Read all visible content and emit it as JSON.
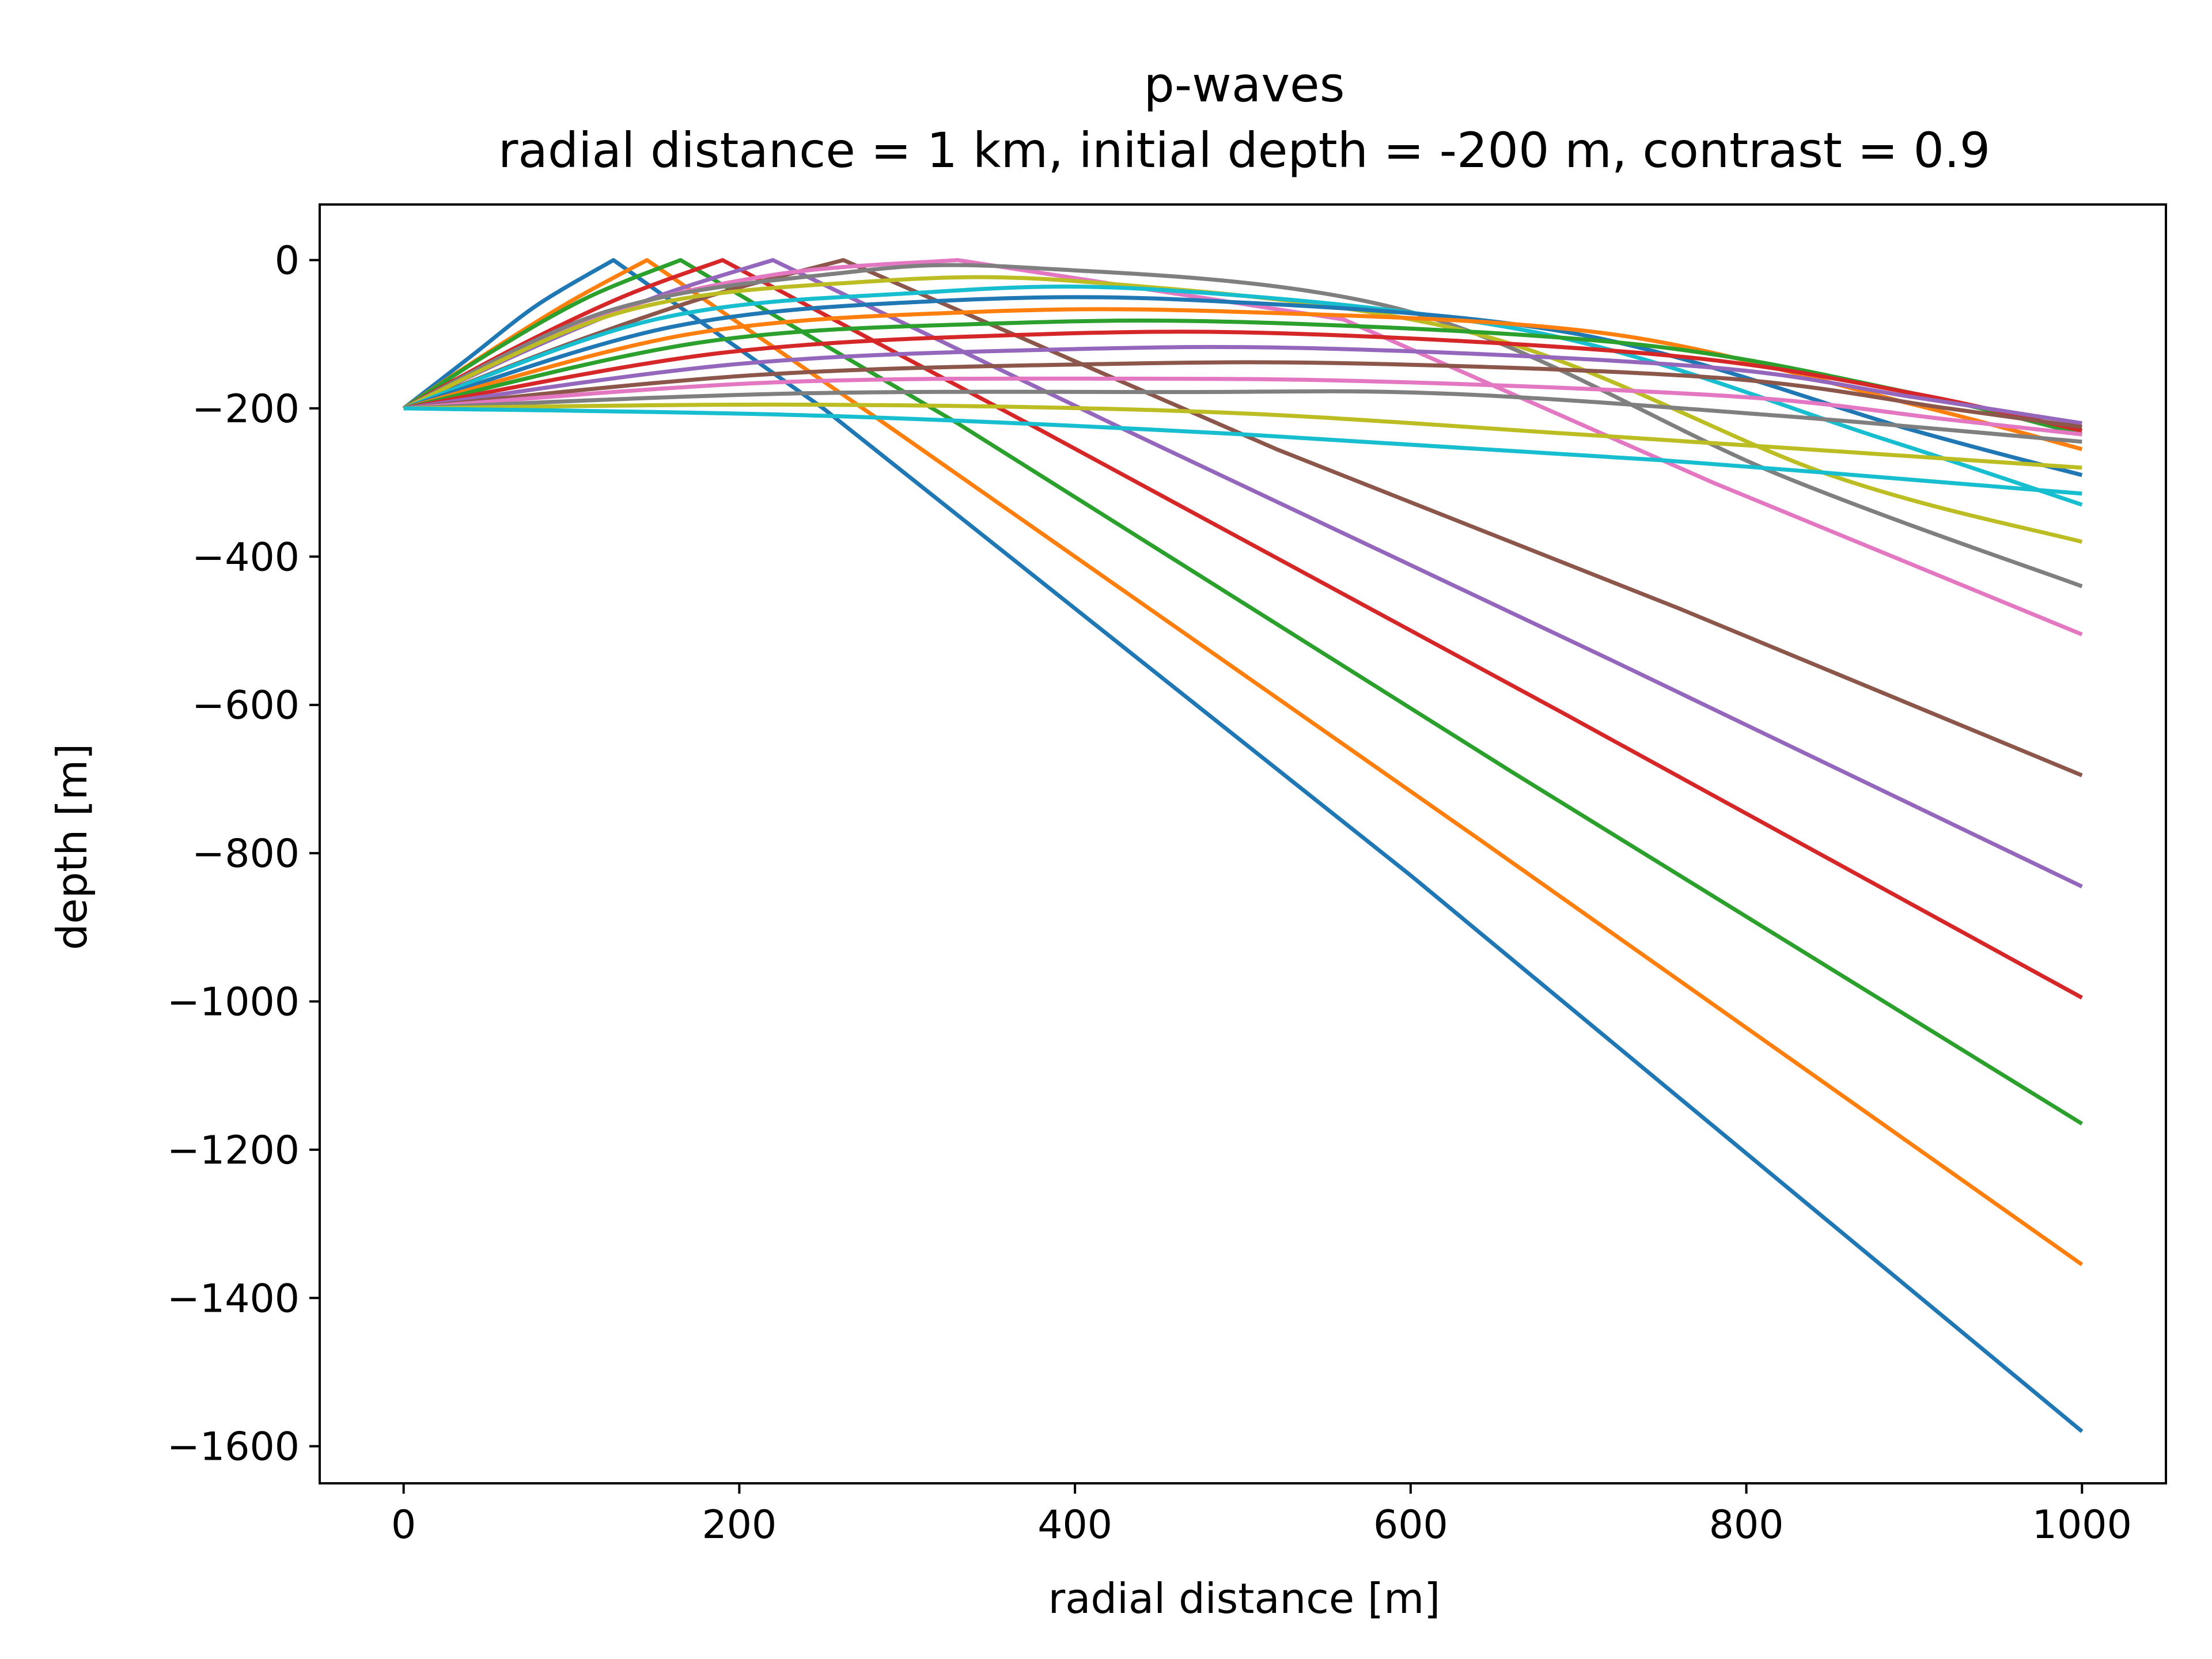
{
  "chart_data": {
    "type": "line",
    "title": "p-waves",
    "subtitle": "radial distance = 1 km, initial depth = -200 m, contrast = 0.9",
    "xlabel": "radial distance [m]",
    "ylabel": "depth [m]",
    "xlim": [
      -50,
      1050
    ],
    "ylim": [
      -1650,
      75
    ],
    "xticks": [
      0,
      200,
      400,
      600,
      800,
      1000
    ],
    "xtick_labels": [
      "0",
      "200",
      "400",
      "600",
      "800",
      "1000"
    ],
    "yticks": [
      0,
      -200,
      -400,
      -600,
      -800,
      -1000,
      -1200,
      -1400,
      -1600
    ],
    "ytick_labels": [
      "0",
      "−200",
      "−400",
      "−600",
      "−800",
      "−1000",
      "−1200",
      "−1400",
      "−1600"
    ],
    "grid": false,
    "legend": "none",
    "series": [
      {
        "kind": "reflected",
        "color": "#1f77b4",
        "points": [
          [
            0,
            -200
          ],
          [
            40,
            -130
          ],
          [
            80,
            -60
          ],
          [
            125,
            0
          ],
          [
            250,
            -200
          ],
          [
            600,
            -830
          ],
          [
            1000,
            -1580
          ]
        ]
      },
      {
        "kind": "reflected",
        "color": "#ff7f0e",
        "points": [
          [
            0,
            -200
          ],
          [
            50,
            -125
          ],
          [
            100,
            -55
          ],
          [
            145,
            0
          ],
          [
            280,
            -210
          ],
          [
            640,
            -780
          ],
          [
            1000,
            -1355
          ]
        ]
      },
      {
        "kind": "reflected",
        "color": "#2ca02c",
        "points": [
          [
            0,
            -200
          ],
          [
            55,
            -120
          ],
          [
            110,
            -50
          ],
          [
            165,
            0
          ],
          [
            330,
            -220
          ],
          [
            660,
            -690
          ],
          [
            1000,
            -1165
          ]
        ]
      },
      {
        "kind": "reflected",
        "color": "#d62728",
        "points": [
          [
            0,
            -200
          ],
          [
            65,
            -120
          ],
          [
            130,
            -50
          ],
          [
            190,
            0
          ],
          [
            380,
            -230
          ],
          [
            690,
            -610
          ],
          [
            1000,
            -995
          ]
        ]
      },
      {
        "kind": "reflected",
        "color": "#9467bd",
        "points": [
          [
            0,
            -200
          ],
          [
            75,
            -120
          ],
          [
            150,
            -50
          ],
          [
            220,
            0
          ],
          [
            440,
            -240
          ],
          [
            720,
            -540
          ],
          [
            1000,
            -845
          ]
        ]
      },
      {
        "kind": "reflected",
        "color": "#8c564b",
        "points": [
          [
            0,
            -200
          ],
          [
            90,
            -120
          ],
          [
            180,
            -50
          ],
          [
            262,
            0
          ],
          [
            520,
            -255
          ],
          [
            760,
            -470
          ],
          [
            1000,
            -695
          ]
        ]
      },
      {
        "kind": "reflected",
        "color": "#e377c2",
        "points": [
          [
            0,
            -200
          ],
          [
            110,
            -80
          ],
          [
            220,
            -20
          ],
          [
            330,
            0
          ],
          [
            560,
            -80
          ],
          [
            780,
            -300
          ],
          [
            1000,
            -505
          ]
        ]
      },
      {
        "kind": "reflected",
        "color": "#7f7f7f",
        "points": [
          [
            0,
            -200
          ],
          [
            120,
            -70
          ],
          [
            250,
            -20
          ],
          [
            370,
            -10
          ],
          [
            600,
            -70
          ],
          [
            820,
            -290
          ],
          [
            1000,
            -440
          ]
        ]
      },
      {
        "kind": "reflected",
        "color": "#bcbd22",
        "points": [
          [
            0,
            -200
          ],
          [
            130,
            -70
          ],
          [
            270,
            -30
          ],
          [
            410,
            -30
          ],
          [
            640,
            -100
          ],
          [
            850,
            -290
          ],
          [
            1000,
            -380
          ]
        ]
      },
      {
        "kind": "reflected",
        "color": "#17becf",
        "points": [
          [
            0,
            -200
          ],
          [
            150,
            -80
          ],
          [
            300,
            -45
          ],
          [
            450,
            -40
          ],
          [
            680,
            -100
          ],
          [
            880,
            -240
          ],
          [
            1000,
            -330
          ]
        ]
      },
      {
        "kind": "reflected",
        "color": "#1f77b4",
        "points": [
          [
            0,
            -200
          ],
          [
            160,
            -90
          ],
          [
            320,
            -55
          ],
          [
            480,
            -55
          ],
          [
            700,
            -100
          ],
          [
            900,
            -230
          ],
          [
            1000,
            -290
          ]
        ]
      },
      {
        "kind": "reflected",
        "color": "#ff7f0e",
        "points": [
          [
            0,
            -200
          ],
          [
            170,
            -100
          ],
          [
            340,
            -70
          ],
          [
            500,
            -70
          ],
          [
            720,
            -100
          ],
          [
            900,
            -195
          ],
          [
            1000,
            -255
          ]
        ]
      },
      {
        "kind": "reflected",
        "color": "#2ca02c",
        "points": [
          [
            0,
            -200
          ],
          [
            180,
            -110
          ],
          [
            360,
            -85
          ],
          [
            520,
            -85
          ],
          [
            740,
            -115
          ],
          [
            900,
            -180
          ],
          [
            1000,
            -235
          ]
        ]
      },
      {
        "kind": "reflected",
        "color": "#d62728",
        "points": [
          [
            0,
            -200
          ],
          [
            190,
            -125
          ],
          [
            380,
            -100
          ],
          [
            540,
            -100
          ],
          [
            760,
            -130
          ],
          [
            900,
            -180
          ],
          [
            1000,
            -230
          ]
        ]
      },
      {
        "kind": "reflected",
        "color": "#9467bd",
        "points": [
          [
            0,
            -200
          ],
          [
            200,
            -140
          ],
          [
            400,
            -120
          ],
          [
            560,
            -120
          ],
          [
            780,
            -145
          ],
          [
            900,
            -185
          ],
          [
            1000,
            -220
          ]
        ]
      },
      {
        "kind": "reflected",
        "color": "#8c564b",
        "points": [
          [
            0,
            -200
          ],
          [
            210,
            -155
          ],
          [
            420,
            -140
          ],
          [
            580,
            -140
          ],
          [
            790,
            -160
          ],
          [
            920,
            -200
          ],
          [
            1000,
            -225
          ]
        ]
      },
      {
        "kind": "reflected",
        "color": "#e377c2",
        "points": [
          [
            0,
            -200
          ],
          [
            220,
            -165
          ],
          [
            440,
            -160
          ],
          [
            600,
            -165
          ],
          [
            800,
            -185
          ],
          [
            920,
            -215
          ],
          [
            1000,
            -235
          ]
        ]
      },
      {
        "kind": "reflected",
        "color": "#7f7f7f",
        "points": [
          [
            0,
            -200
          ],
          [
            230,
            -180
          ],
          [
            460,
            -178
          ],
          [
            620,
            -180
          ],
          [
            820,
            -210
          ],
          [
            1000,
            -245
          ]
        ]
      },
      {
        "kind": "reflected",
        "color": "#bcbd22",
        "points": [
          [
            0,
            -200
          ],
          [
            240,
            -195
          ],
          [
            480,
            -205
          ],
          [
            700,
            -235
          ],
          [
            1000,
            -280
          ]
        ]
      },
      {
        "kind": "reflected",
        "color": "#17becf",
        "points": [
          [
            0,
            -200
          ],
          [
            250,
            -210
          ],
          [
            500,
            -235
          ],
          [
            750,
            -270
          ],
          [
            1000,
            -315
          ]
        ]
      }
    ]
  }
}
